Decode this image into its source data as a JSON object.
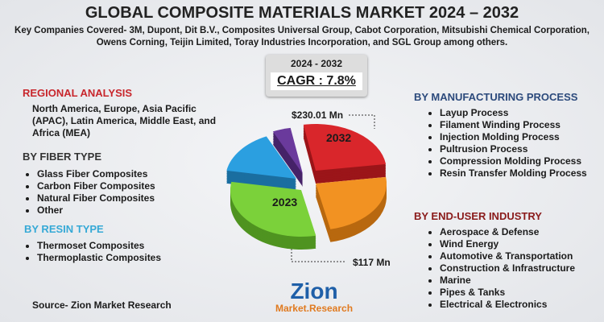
{
  "header": {
    "title": "GLOBAL COMPOSITE MATERIALS MARKET 2024 – 2032",
    "subtitle": [
      "Key Companies Covered- 3M, Dupont, Dit B.V., Composites Universal Group, Cabot Corporation, Mitsubishi Chemical Corporation,",
      "Owens Corning, Teijin Limited, Toray Industries Incorporation, and SGL Group among others."
    ]
  },
  "cagr": {
    "period": "2024 - 2032",
    "value": "CAGR : 7.8%"
  },
  "pie": {
    "label_2032": "2032",
    "label_2023": "2023",
    "value_2032": "$230.01 Mn",
    "value_2023": "$117 Mn"
  },
  "left": {
    "regional": {
      "heading": "REGIONAL ANALYSIS",
      "text": "North America, Europe, Asia Pacific (APAC), Latin America, Middle East, and Africa (MEA)"
    },
    "fiber": {
      "heading": "BY FIBER TYPE",
      "items": [
        "Glass Fiber Composites",
        "Carbon Fiber Composites",
        "Natural Fiber Composites",
        "Other"
      ]
    },
    "resin": {
      "heading": "BY RESIN TYPE",
      "items": [
        "Thermoset Composites",
        "Thermoplastic  Composites"
      ]
    }
  },
  "right": {
    "process": {
      "heading": "BY MANUFACTURING PROCESS",
      "items": [
        "Layup Process",
        "Filament Winding Process",
        "Injection Molding Process",
        "Pultrusion Process",
        "Compression Molding Process",
        "Resin Transfer Molding Process"
      ]
    },
    "industry": {
      "heading": "BY END-USER INDUSTRY",
      "items": [
        "Aerospace & Defense",
        "Wind Energy",
        "Automotive & Transportation",
        "Construction & Infrastructure",
        "Marine",
        "Pipes & Tanks",
        "Electrical & Electronics"
      ]
    }
  },
  "source": "Source- Zion Market Research",
  "logo": {
    "name": "Zion",
    "sub": "Market.Research"
  }
}
